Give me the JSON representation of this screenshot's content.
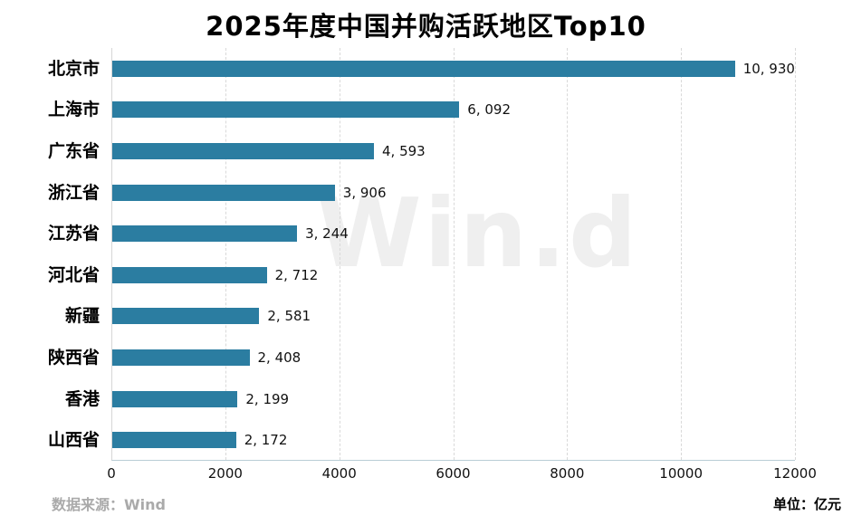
{
  "title": "2025年度中国并购活跃地区Top10",
  "watermark": {
    "text": "Win.d"
  },
  "footer": {
    "source": "数据来源：Wind",
    "unit": "单位：亿元"
  },
  "colors": {
    "bar": "#2b7da1",
    "grid": "#d9d9d9",
    "axis_left": "#d6d6d6",
    "axis_bottom": "#b9cdd6",
    "watermark": "#efefef",
    "source_text": "#aaaaaa",
    "title_text": "#000000",
    "value_text": "#111111"
  },
  "chart_data": {
    "type": "bar",
    "orientation": "horizontal",
    "title": "2025年度中国并购活跃地区Top10",
    "categories": [
      "北京市",
      "上海市",
      "广东省",
      "浙江省",
      "江苏省",
      "河北省",
      "新疆",
      "陕西省",
      "香港",
      "山西省"
    ],
    "values": [
      10930,
      6092,
      4593,
      3906,
      3244,
      2712,
      2581,
      2408,
      2199,
      2172
    ],
    "value_labels": [
      "10, 930",
      "6, 092",
      "4, 593",
      "3, 906",
      "3, 244",
      "2, 712",
      "2, 581",
      "2, 408",
      "2, 199",
      "2, 172"
    ],
    "xlim": [
      0,
      12000
    ],
    "x_ticks": [
      "0",
      "2000",
      "4000",
      "6000",
      "8000",
      "10000",
      "12000"
    ],
    "x_tick_values": [
      0,
      2000,
      4000,
      6000,
      8000,
      10000,
      12000
    ],
    "grid": "vertical-dashed",
    "legend": "none",
    "xlabel": "",
    "ylabel": "",
    "unit": "亿元",
    "source": "Wind"
  }
}
